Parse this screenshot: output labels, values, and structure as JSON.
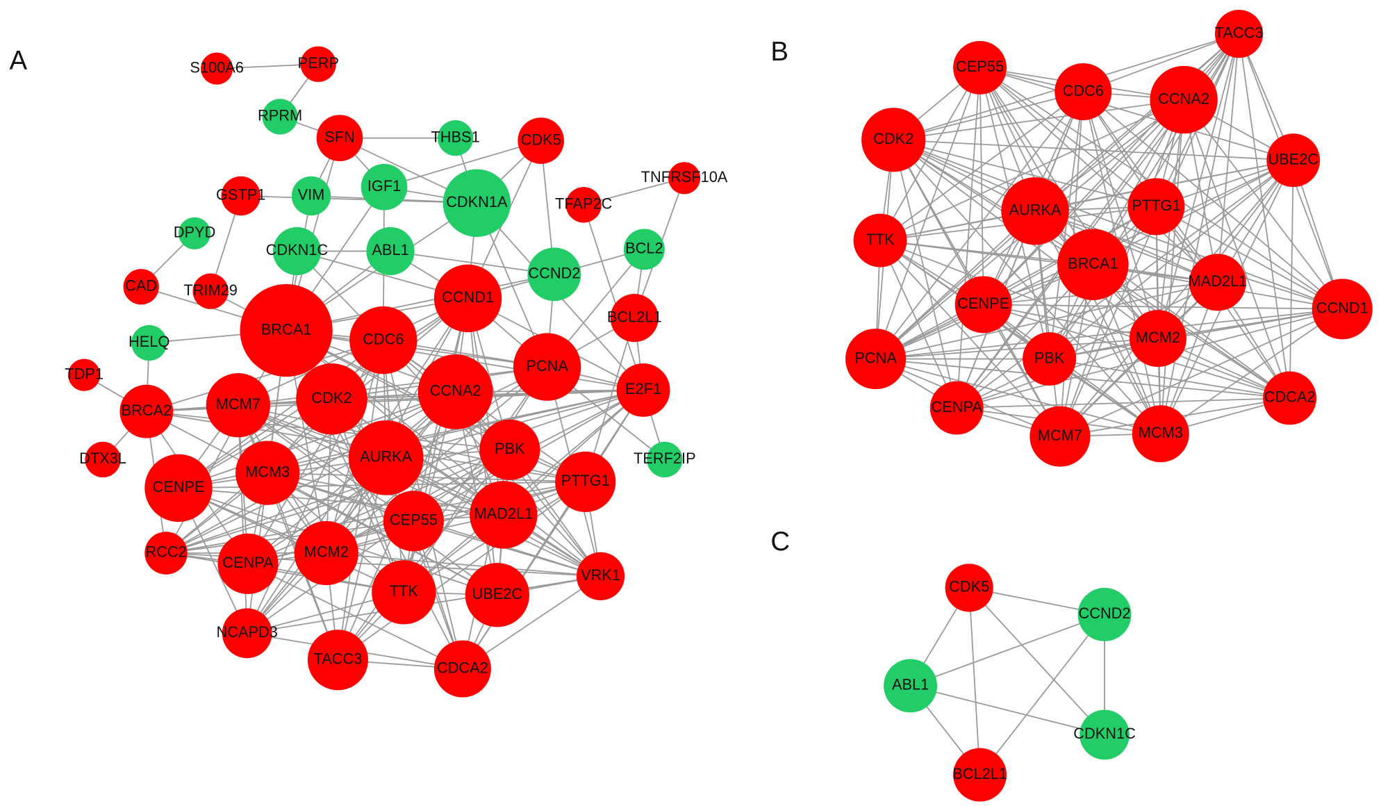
{
  "panels": [
    {
      "label": "A",
      "nodes": [
        {
          "label": "S100A6",
          "color": "#ff0000"
        },
        {
          "label": "PERP",
          "color": "#ff0000"
        },
        {
          "label": "RPRM",
          "color": "#22cc66"
        },
        {
          "label": "SFN",
          "color": "#ff0000"
        },
        {
          "label": "THBS1",
          "color": "#22cc66"
        },
        {
          "label": "CDK5",
          "color": "#ff0000"
        },
        {
          "label": "TNFRSF10A",
          "color": "#ff0000"
        },
        {
          "label": "GSTP1",
          "color": "#ff0000"
        },
        {
          "label": "VIM",
          "color": "#22cc66"
        },
        {
          "label": "IGF1",
          "color": "#22cc66"
        },
        {
          "label": "CDKN1A",
          "color": "#22cc66"
        },
        {
          "label": "TFAP2C",
          "color": "#ff0000"
        },
        {
          "label": "DPYD",
          "color": "#22cc66"
        },
        {
          "label": "CDKN1C",
          "color": "#22cc66"
        },
        {
          "label": "ABL1",
          "color": "#22cc66"
        },
        {
          "label": "BCL2",
          "color": "#22cc66"
        },
        {
          "label": "CCND2",
          "color": "#22cc66"
        },
        {
          "label": "CAD",
          "color": "#ff0000"
        },
        {
          "label": "TRIM29",
          "color": "#ff0000"
        },
        {
          "label": "CCND1",
          "color": "#ff0000"
        },
        {
          "label": "BCL2L1",
          "color": "#ff0000"
        },
        {
          "label": "BRCA1",
          "color": "#ff0000"
        },
        {
          "label": "CDC6",
          "color": "#ff0000"
        },
        {
          "label": "HELQ",
          "color": "#22cc66"
        },
        {
          "label": "PCNA",
          "color": "#ff0000"
        },
        {
          "label": "TDP1",
          "color": "#ff0000"
        },
        {
          "label": "CDK2",
          "color": "#ff0000"
        },
        {
          "label": "CCNA2",
          "color": "#ff0000"
        },
        {
          "label": "E2F1",
          "color": "#ff0000"
        },
        {
          "label": "MCM7",
          "color": "#ff0000"
        },
        {
          "label": "BRCA2",
          "color": "#ff0000"
        },
        {
          "label": "AURKA",
          "color": "#ff0000"
        },
        {
          "label": "PBK",
          "color": "#ff0000"
        },
        {
          "label": "TERF2IP",
          "color": "#22cc66"
        },
        {
          "label": "DTX3L",
          "color": "#ff0000"
        },
        {
          "label": "CENPE",
          "color": "#ff0000"
        },
        {
          "label": "MCM3",
          "color": "#ff0000"
        },
        {
          "label": "PTTG1",
          "color": "#ff0000"
        },
        {
          "label": "CEP55",
          "color": "#ff0000"
        },
        {
          "label": "MAD2L1",
          "color": "#ff0000"
        },
        {
          "label": "RCC2",
          "color": "#ff0000"
        },
        {
          "label": "CENPA",
          "color": "#ff0000"
        },
        {
          "label": "MCM2",
          "color": "#ff0000"
        },
        {
          "label": "VRK1",
          "color": "#ff0000"
        },
        {
          "label": "TTK",
          "color": "#ff0000"
        },
        {
          "label": "UBE2C",
          "color": "#ff0000"
        },
        {
          "label": "NCAPD3",
          "color": "#ff0000"
        },
        {
          "label": "TACC3",
          "color": "#ff0000"
        },
        {
          "label": "CDCA2",
          "color": "#ff0000"
        }
      ]
    },
    {
      "label": "B",
      "nodes": [
        {
          "label": "TACC3",
          "color": "#ff0000"
        },
        {
          "label": "CEP55",
          "color": "#ff0000"
        },
        {
          "label": "CDC6",
          "color": "#ff0000"
        },
        {
          "label": "CCNA2",
          "color": "#ff0000"
        },
        {
          "label": "CDK2",
          "color": "#ff0000"
        },
        {
          "label": "UBE2C",
          "color": "#ff0000"
        },
        {
          "label": "AURKA",
          "color": "#ff0000"
        },
        {
          "label": "PTTG1",
          "color": "#ff0000"
        },
        {
          "label": "TTK",
          "color": "#ff0000"
        },
        {
          "label": "BRCA1",
          "color": "#ff0000"
        },
        {
          "label": "MAD2L1",
          "color": "#ff0000"
        },
        {
          "label": "CCND1",
          "color": "#ff0000"
        },
        {
          "label": "CENPE",
          "color": "#ff0000"
        },
        {
          "label": "MCM2",
          "color": "#ff0000"
        },
        {
          "label": "PCNA",
          "color": "#ff0000"
        },
        {
          "label": "PBK",
          "color": "#ff0000"
        },
        {
          "label": "CENPA",
          "color": "#ff0000"
        },
        {
          "label": "CDCA2",
          "color": "#ff0000"
        },
        {
          "label": "MCM7",
          "color": "#ff0000"
        },
        {
          "label": "MCM3",
          "color": "#ff0000"
        }
      ]
    },
    {
      "label": "C",
      "nodes": [
        {
          "label": "CDK5",
          "color": "#ff0000"
        },
        {
          "label": "CCND2",
          "color": "#22cc66"
        },
        {
          "label": "ABL1",
          "color": "#22cc66"
        },
        {
          "label": "CDKN1C",
          "color": "#22cc66"
        },
        {
          "label": "BCL2L1",
          "color": "#ff0000"
        }
      ]
    }
  ]
}
